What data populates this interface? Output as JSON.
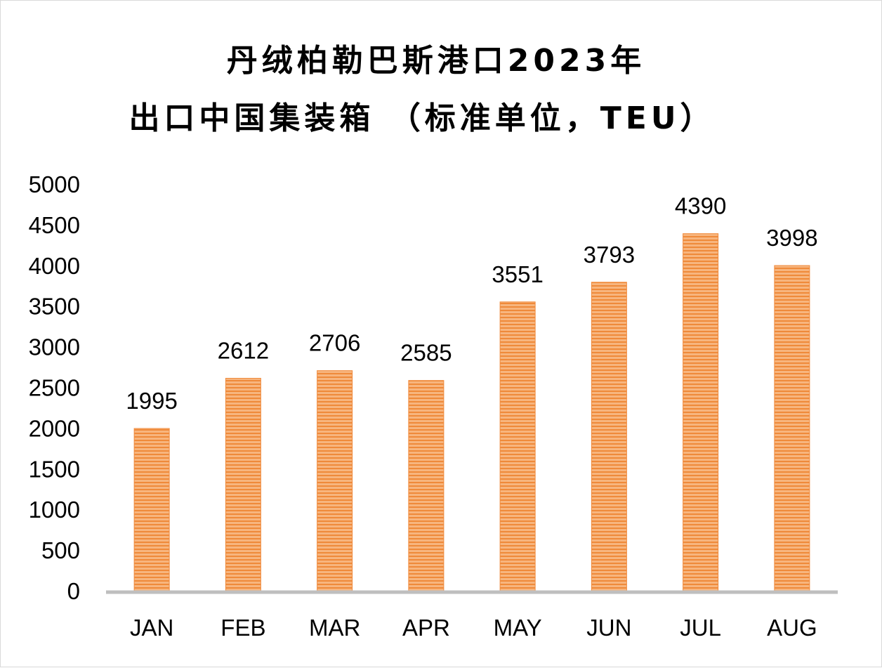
{
  "chart_data": {
    "type": "bar",
    "title_line1": "丹绒柏勒巴斯港口2023年",
    "title_line2": "出口中国集装箱 （标准单位，TEU）",
    "xlabel": "",
    "ylabel": "",
    "categories": [
      "JAN",
      "FEB",
      "MAR",
      "APR",
      "MAY",
      "JUN",
      "JUL",
      "AUG"
    ],
    "values": [
      1995,
      2612,
      2706,
      2585,
      3551,
      3793,
      4390,
      3998
    ],
    "data_labels": [
      "1995",
      "2612",
      "2706",
      "2585",
      "3551",
      "3793",
      "4390",
      "3998"
    ],
    "ylim": [
      0,
      5000
    ],
    "yticks": [
      "0",
      "500",
      "1000",
      "1500",
      "2000",
      "2500",
      "3000",
      "3500",
      "4000",
      "4500",
      "5000"
    ],
    "grid": false,
    "legend": "none",
    "colors": {
      "bar": "#f4a460",
      "bar_stripe": "#f08a3c",
      "axis": "#bfbfbf"
    }
  }
}
